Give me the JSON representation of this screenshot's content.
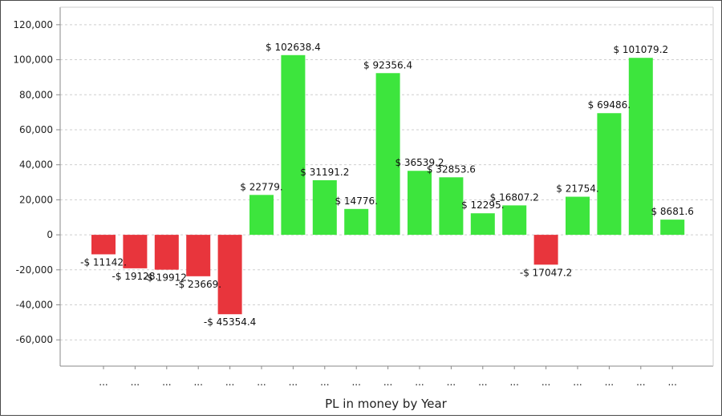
{
  "chart_data": {
    "type": "bar",
    "xlabel": "PL in money by Year",
    "ylabel": "",
    "ylim": [
      -75000,
      130000
    ],
    "yticks": [
      120000,
      100000,
      80000,
      60000,
      40000,
      20000,
      0,
      -20000,
      -40000,
      -60000
    ],
    "ytick_labels": [
      "120,000",
      "100,000",
      "80,000",
      "60,000",
      "40,000",
      "20,000",
      "0",
      "-20,000",
      "-40,000",
      "-60,000"
    ],
    "categories": [
      "...",
      "...",
      "...",
      "...",
      "...",
      "...",
      "...",
      "...",
      "...",
      "...",
      "...",
      "...",
      "...",
      "...",
      "...",
      "...",
      "...",
      "...",
      "..."
    ],
    "values": [
      -11142,
      -19128,
      -19912,
      -23669,
      -45354.4,
      22779,
      102638.4,
      31191.2,
      14776,
      92356.4,
      36539.2,
      32853.6,
      12295,
      16807.2,
      -17047.2,
      21754,
      69486,
      101079.2,
      8681.6
    ],
    "data_labels": [
      "-$ 11142.",
      "-$ 19128.",
      "-$ 19912.",
      "-$ 23669.",
      "-$ 45354.4",
      "$ 22779.",
      "$ 102638.4",
      "$ 31191.2",
      "$ 14776.",
      "$ 92356.4",
      "$ 36539.2",
      "$ 32853.6",
      "$ 12295.",
      "$ 16807.2",
      "-$ 17047.2",
      "$ 21754.",
      "$ 69486.",
      "$ 101079.2",
      "$ 8681.6"
    ],
    "grid": true,
    "legend": "none",
    "colors": {
      "positive": "#3de53d",
      "negative": "#e8353c",
      "grid": "#cfcfcf",
      "axis": "#888888"
    }
  }
}
